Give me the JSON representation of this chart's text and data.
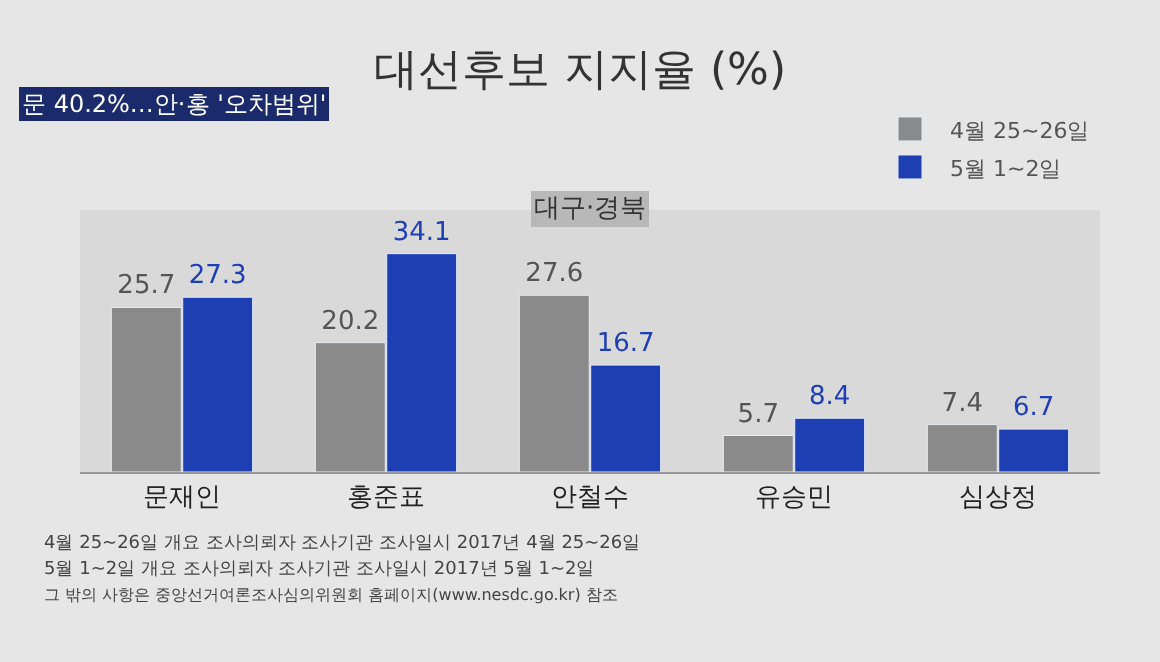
{
  "chart_data": {
    "type": "bar",
    "title": "대선후보 지지율 (%)",
    "subtitle": "대구·경북",
    "categories": [
      "문재인",
      "홍준표",
      "안철수",
      "유승민",
      "심상정"
    ],
    "series": [
      {
        "name": "4월 25~26일",
        "color": "#8a8a8a",
        "values": [
          25.7,
          20.2,
          27.6,
          5.7,
          7.4
        ]
      },
      {
        "name": "5월 1~2일",
        "color": "#1e3fb4",
        "values": [
          27.3,
          34.1,
          16.7,
          8.4,
          6.7
        ]
      }
    ],
    "data_labels": true,
    "legend": "top right",
    "grid": false,
    "annotations": [
      "문 40.2%…안·홍 '오차범위'",
      "4월 25~26일 개요 조사의뢰자 조사기관 조사일시 2017년 4월 25~26일",
      "5월 1~2일 개요 조사의뢰자 조사기관 조사일시 2017년 5월 1~2일",
      "그 밖의 사항은 중앙선거여론조사심의위원회 홈페이지(www.nesdc.go.kr) 참조"
    ]
  }
}
